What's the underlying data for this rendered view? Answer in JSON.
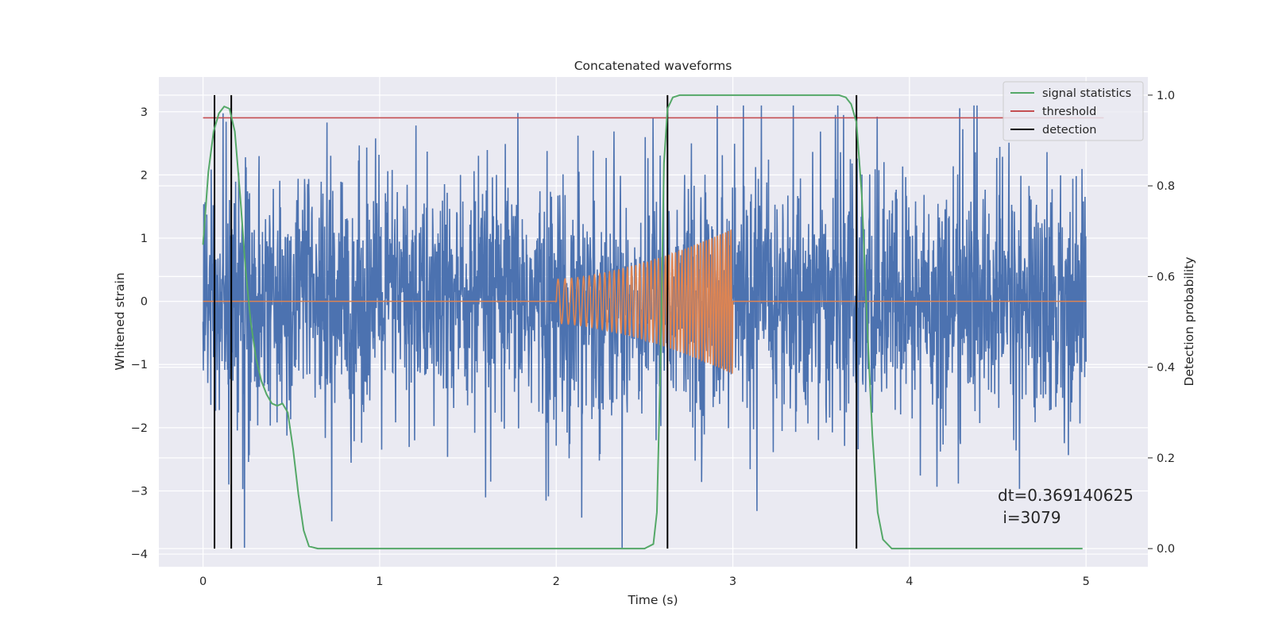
{
  "chart_data": {
    "type": "line",
    "title": "Concatenated waveforms",
    "xlabel": "Time (s)",
    "ylabel": "Whitened strain",
    "y2label": "Detection probability",
    "xlim": [
      -0.25,
      5.35
    ],
    "ylim": [
      -4.2,
      3.55
    ],
    "y2lim": [
      -0.04,
      1.04
    ],
    "xticks": [
      0,
      1,
      2,
      3,
      4,
      5
    ],
    "yticks": [
      -4,
      -3,
      -2,
      -1,
      0,
      1,
      2,
      3
    ],
    "y2ticks": [
      0.0,
      0.2,
      0.4,
      0.6,
      0.8,
      1.0
    ],
    "xtick_labels": [
      "0",
      "1",
      "2",
      "3",
      "4",
      "5"
    ],
    "ytick_labels": [
      "−4",
      "−3",
      "−2",
      "−1",
      "0",
      "1",
      "2",
      "3"
    ],
    "y2tick_labels": [
      "0.0",
      "0.2",
      "0.4",
      "0.6",
      "0.8",
      "1.0"
    ],
    "grid": true,
    "legend_position": "top-right",
    "series": [
      {
        "kind": "noise",
        "color": "#4c72b0",
        "x_range": [
          0,
          5
        ],
        "typical_amplitude": 1.2,
        "peak_range": [
          -3.9,
          3.1
        ]
      },
      {
        "kind": "chirp",
        "color": "#dd8452",
        "x_range": [
          0,
          5
        ],
        "chirp_start": 2.0,
        "chirp_end": 3.0,
        "amplitude_start": 0.35,
        "amplitude_end": 1.15,
        "baseline": 0
      },
      {
        "name": "signal statistics",
        "axis": "right",
        "color": "#55a868",
        "x": [
          0,
          0.03,
          0.06,
          0.09,
          0.12,
          0.15,
          0.18,
          0.21,
          0.24,
          0.27,
          0.3,
          0.33,
          0.36,
          0.39,
          0.42,
          0.45,
          0.48,
          0.51,
          0.54,
          0.57,
          0.6,
          0.65,
          0.8,
          1.5,
          2.0,
          2.5,
          2.55,
          2.57,
          2.59,
          2.61,
          2.63,
          2.66,
          2.7,
          2.8,
          3.0,
          3.3,
          3.6,
          3.64,
          3.67,
          3.7,
          3.73,
          3.76,
          3.79,
          3.82,
          3.85,
          3.9,
          4.0,
          4.5,
          4.98
        ],
        "y": [
          0.67,
          0.83,
          0.92,
          0.96,
          0.975,
          0.97,
          0.92,
          0.78,
          0.62,
          0.5,
          0.42,
          0.37,
          0.34,
          0.32,
          0.315,
          0.32,
          0.3,
          0.22,
          0.12,
          0.04,
          0.005,
          0.0,
          0.0,
          0.0,
          0.0,
          0.0,
          0.01,
          0.08,
          0.4,
          0.85,
          0.97,
          0.995,
          1.0,
          1.0,
          1.0,
          1.0,
          1.0,
          0.995,
          0.98,
          0.94,
          0.78,
          0.5,
          0.25,
          0.08,
          0.02,
          0.0,
          0.0,
          0.0,
          0.0
        ]
      },
      {
        "name": "threshold",
        "axis": "right",
        "color": "#c44e52",
        "x": [
          0,
          5.1
        ],
        "y": [
          0.95,
          0.95
        ]
      },
      {
        "name": "detection",
        "axis": "right",
        "color": "#000000",
        "kind": "vlines",
        "x": [
          0.065,
          0.16,
          2.63,
          3.7
        ],
        "ymin": 0.0,
        "ymax": 1.0
      }
    ],
    "annotation": {
      "line1": "dt=0.369140625",
      "line2": " i=3079"
    }
  }
}
